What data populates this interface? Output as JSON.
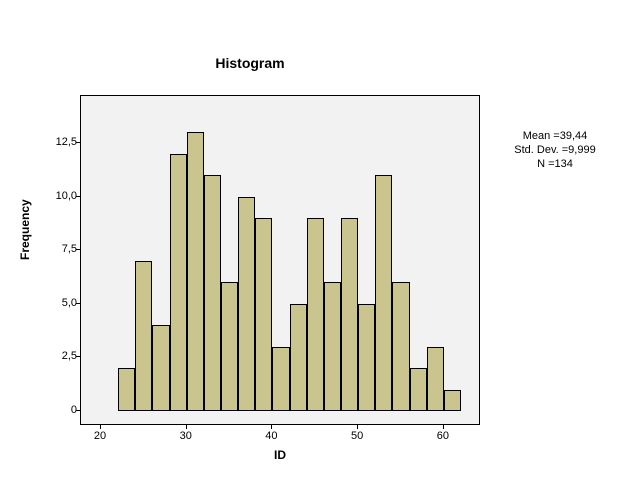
{
  "chart": {
    "type": "histogram",
    "title": "Histogram",
    "xlabel": "ID",
    "ylabel": "Frequency",
    "title_fontsize": 14,
    "label_fontsize": 12,
    "tick_fontsize": 11,
    "background_color": "#f2f2f2",
    "page_background": "#ffffff",
    "bar_fill": "#cac58e",
    "bar_border": "#000000",
    "axis_color": "#000000",
    "xlim": [
      20,
      62
    ],
    "ylim": [
      0,
      14
    ],
    "xticks": [
      20,
      30,
      40,
      50,
      60
    ],
    "yticks": [
      0,
      2.5,
      5.0,
      7.5,
      10.0,
      12.5
    ],
    "ytick_labels": [
      "0",
      "2,5",
      "5,0",
      "7,5",
      "10,0",
      "12,5"
    ],
    "bin_width": 2,
    "bins_start": 22,
    "values": [
      2,
      7,
      4,
      12,
      13,
      11,
      6,
      10,
      9,
      3,
      5,
      9,
      6,
      9,
      5,
      11,
      6,
      2,
      3,
      1
    ],
    "bar_width_ratio": 1.0
  },
  "stats": {
    "mean_label": "Mean =39,44",
    "stddev_label": "Std. Dev. =9,999",
    "n_label": "N =134"
  }
}
